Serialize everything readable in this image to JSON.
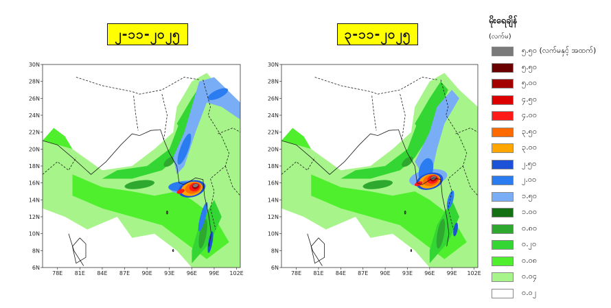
{
  "panels": [
    {
      "date": "၂-၁၁-၂၀၂၅",
      "lat_ticks": [
        "30N",
        "28N",
        "26N",
        "24N",
        "22N",
        "20N",
        "18N",
        "16N",
        "14N",
        "12N",
        "10N",
        "8N",
        "6N"
      ],
      "lon_ticks": [
        "78E",
        "81E",
        "84E",
        "87E",
        "90E",
        "93E",
        "96E",
        "99E",
        "102E"
      ],
      "max_rain_center": {
        "lon": 96.0,
        "lat": 15.3
      }
    },
    {
      "date": "၃-၁၁-၂၀၂၅",
      "lat_ticks": [
        "30N",
        "28N",
        "26N",
        "24N",
        "22N",
        "20N",
        "18N",
        "16N",
        "14N",
        "12N",
        "10N",
        "8N",
        "6N"
      ],
      "lon_ticks": [
        "78E",
        "81E",
        "84E",
        "87E",
        "90E",
        "93E",
        "96E",
        "99E",
        "102E"
      ],
      "max_rain_center": {
        "lon": 96.0,
        "lat": 16.2
      }
    }
  ],
  "map_extent": {
    "lon": [
      76,
      102.5
    ],
    "lat": [
      6,
      30
    ]
  },
  "legend": {
    "title": "မိုးရေချိန်",
    "unit": "(လက်မ)",
    "items": [
      {
        "label": "၅.၅၀ (လက်မနှင့် အထက်)",
        "color": "#7a7a7a"
      },
      {
        "label": "၅.၅၀",
        "color": "#6b0000"
      },
      {
        "label": "၅.၀၀",
        "color": "#a30000"
      },
      {
        "label": "၄.၅၀",
        "color": "#dd0000"
      },
      {
        "label": "၄.၀၀",
        "color": "#ff1a1a"
      },
      {
        "label": "၃.၅၀",
        "color": "#ff6a00"
      },
      {
        "label": "၃.၀၀",
        "color": "#ffa500"
      },
      {
        "label": "၂.၅၀",
        "color": "#1d52d8"
      },
      {
        "label": "၂.၀၀",
        "color": "#2a7cf0"
      },
      {
        "label": "၁.၅၀",
        "color": "#79aef7"
      },
      {
        "label": "၁.၀၀",
        "color": "#137013"
      },
      {
        "label": "၀.၈၀",
        "color": "#2ea82e"
      },
      {
        "label": "၀.၂၀",
        "color": "#33d633"
      },
      {
        "label": "၀.၀၈",
        "color": "#4fef2e"
      },
      {
        "label": "၀.၀၄",
        "color": "#a7f58a"
      },
      {
        "label": "၀.၀၂",
        "color": "#ffffff"
      }
    ]
  }
}
